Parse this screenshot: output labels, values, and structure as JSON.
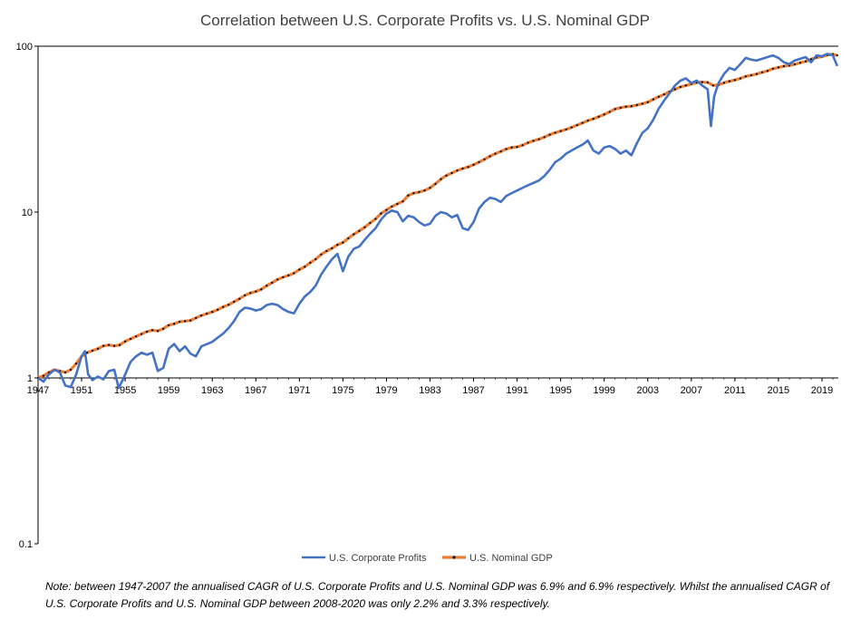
{
  "chart_data": {
    "type": "line",
    "title": "Correlation between U.S. Corporate Profits vs. U.S. Nominal GDP",
    "xlabel": "",
    "ylabel": "",
    "y_scale": "log",
    "ylim": [
      0.1,
      100
    ],
    "y_ticks": [
      {
        "value": 0.1,
        "label": "0.1"
      },
      {
        "value": 1,
        "label": "1"
      },
      {
        "value": 10,
        "label": "10"
      },
      {
        "value": 100,
        "label": "100"
      }
    ],
    "xlim": [
      1947,
      2020.5
    ],
    "x_ticks": [
      1947,
      1951,
      1955,
      1959,
      1963,
      1967,
      1971,
      1975,
      1979,
      1983,
      1987,
      1991,
      1995,
      1999,
      2003,
      2007,
      2011,
      2015,
      2019
    ],
    "grid": false,
    "legend_position": "bottom",
    "series": [
      {
        "name": "U.S. Corporate Profits",
        "color": "#4472C4",
        "marker": "none",
        "points": [
          [
            1947,
            1.0
          ],
          [
            1947.5,
            0.95
          ],
          [
            1948,
            1.05
          ],
          [
            1948.5,
            1.12
          ],
          [
            1949,
            1.08
          ],
          [
            1949.5,
            0.9
          ],
          [
            1950,
            0.88
          ],
          [
            1950.5,
            1.05
          ],
          [
            1951,
            1.35
          ],
          [
            1951.3,
            1.45
          ],
          [
            1951.6,
            1.05
          ],
          [
            1952,
            0.97
          ],
          [
            1952.5,
            1.02
          ],
          [
            1953,
            0.98
          ],
          [
            1953.5,
            1.1
          ],
          [
            1954,
            1.12
          ],
          [
            1954.4,
            0.87
          ],
          [
            1954.8,
            0.98
          ],
          [
            1955,
            1.05
          ],
          [
            1955.5,
            1.25
          ],
          [
            1956,
            1.35
          ],
          [
            1956.5,
            1.42
          ],
          [
            1957,
            1.38
          ],
          [
            1957.5,
            1.42
          ],
          [
            1958,
            1.1
          ],
          [
            1958.5,
            1.15
          ],
          [
            1959,
            1.5
          ],
          [
            1959.5,
            1.6
          ],
          [
            1960,
            1.45
          ],
          [
            1960.5,
            1.55
          ],
          [
            1961,
            1.4
          ],
          [
            1961.5,
            1.35
          ],
          [
            1962,
            1.55
          ],
          [
            1962.5,
            1.6
          ],
          [
            1963,
            1.65
          ],
          [
            1963.5,
            1.75
          ],
          [
            1964,
            1.85
          ],
          [
            1964.5,
            2.0
          ],
          [
            1965,
            2.2
          ],
          [
            1965.5,
            2.5
          ],
          [
            1966,
            2.65
          ],
          [
            1966.5,
            2.62
          ],
          [
            1967,
            2.55
          ],
          [
            1967.5,
            2.6
          ],
          [
            1968,
            2.75
          ],
          [
            1968.5,
            2.8
          ],
          [
            1969,
            2.75
          ],
          [
            1969.5,
            2.6
          ],
          [
            1970,
            2.5
          ],
          [
            1970.5,
            2.45
          ],
          [
            1971,
            2.8
          ],
          [
            1971.5,
            3.1
          ],
          [
            1972,
            3.3
          ],
          [
            1972.5,
            3.6
          ],
          [
            1973,
            4.2
          ],
          [
            1973.5,
            4.7
          ],
          [
            1974,
            5.2
          ],
          [
            1974.5,
            5.6
          ],
          [
            1975,
            4.4
          ],
          [
            1975.5,
            5.4
          ],
          [
            1976,
            6.0
          ],
          [
            1976.5,
            6.2
          ],
          [
            1977,
            6.8
          ],
          [
            1977.5,
            7.4
          ],
          [
            1978,
            8.0
          ],
          [
            1978.5,
            9.0
          ],
          [
            1979,
            9.8
          ],
          [
            1979.5,
            10.2
          ],
          [
            1980,
            10.0
          ],
          [
            1980.5,
            8.8
          ],
          [
            1981,
            9.5
          ],
          [
            1981.5,
            9.3
          ],
          [
            1982,
            8.7
          ],
          [
            1982.5,
            8.3
          ],
          [
            1983,
            8.5
          ],
          [
            1983.5,
            9.5
          ],
          [
            1984,
            10.0
          ],
          [
            1984.5,
            9.8
          ],
          [
            1985,
            9.3
          ],
          [
            1985.5,
            9.6
          ],
          [
            1986,
            8.0
          ],
          [
            1986.5,
            7.8
          ],
          [
            1987,
            8.7
          ],
          [
            1987.5,
            10.5
          ],
          [
            1988,
            11.5
          ],
          [
            1988.5,
            12.2
          ],
          [
            1989,
            12.0
          ],
          [
            1989.5,
            11.5
          ],
          [
            1990,
            12.5
          ],
          [
            1990.5,
            13.0
          ],
          [
            1991,
            13.5
          ],
          [
            1991.5,
            14.0
          ],
          [
            1992,
            14.5
          ],
          [
            1992.5,
            15.0
          ],
          [
            1993,
            15.5
          ],
          [
            1993.5,
            16.5
          ],
          [
            1994,
            18.0
          ],
          [
            1994.5,
            20.0
          ],
          [
            1995,
            21.0
          ],
          [
            1995.5,
            22.5
          ],
          [
            1996,
            23.5
          ],
          [
            1996.5,
            24.5
          ],
          [
            1997,
            25.5
          ],
          [
            1997.5,
            27.0
          ],
          [
            1998,
            23.5
          ],
          [
            1998.5,
            22.5
          ],
          [
            1999,
            24.5
          ],
          [
            1999.5,
            25.0
          ],
          [
            2000,
            24.0
          ],
          [
            2000.5,
            22.5
          ],
          [
            2001,
            23.5
          ],
          [
            2001.5,
            22.0
          ],
          [
            2002,
            26.0
          ],
          [
            2002.5,
            30.0
          ],
          [
            2003,
            32.0
          ],
          [
            2003.5,
            36.0
          ],
          [
            2004,
            42.0
          ],
          [
            2004.5,
            47.0
          ],
          [
            2005,
            52.0
          ],
          [
            2005.5,
            58.0
          ],
          [
            2006,
            62.0
          ],
          [
            2006.5,
            64.0
          ],
          [
            2007,
            60.0
          ],
          [
            2007.5,
            62.0
          ],
          [
            2008,
            58.0
          ],
          [
            2008.5,
            55.0
          ],
          [
            2008.8,
            33.0
          ],
          [
            2009.1,
            50.0
          ],
          [
            2009.5,
            60.0
          ],
          [
            2010,
            68.0
          ],
          [
            2010.5,
            74.0
          ],
          [
            2011,
            72.0
          ],
          [
            2011.5,
            78.0
          ],
          [
            2012,
            85.0
          ],
          [
            2012.5,
            83.0
          ],
          [
            2013,
            82.0
          ],
          [
            2013.5,
            84.0
          ],
          [
            2014,
            86.0
          ],
          [
            2014.5,
            88.0
          ],
          [
            2015,
            85.0
          ],
          [
            2015.5,
            80.0
          ],
          [
            2016,
            78.0
          ],
          [
            2016.5,
            82.0
          ],
          [
            2017,
            84.0
          ],
          [
            2017.5,
            86.0
          ],
          [
            2018,
            80.0
          ],
          [
            2018.5,
            88.0
          ],
          [
            2019,
            87.0
          ],
          [
            2019.5,
            90.0
          ],
          [
            2020,
            88.0
          ],
          [
            2020.4,
            76.0
          ]
        ]
      },
      {
        "name": "U.S. Nominal GDP",
        "color": "#ED7D31",
        "marker": "dot",
        "marker_color": "#000000",
        "points": [
          [
            1947,
            1.0
          ],
          [
            1947.5,
            1.03
          ],
          [
            1948,
            1.08
          ],
          [
            1948.5,
            1.12
          ],
          [
            1949,
            1.1
          ],
          [
            1949.5,
            1.08
          ],
          [
            1950,
            1.12
          ],
          [
            1950.5,
            1.22
          ],
          [
            1951,
            1.35
          ],
          [
            1951.5,
            1.42
          ],
          [
            1952,
            1.46
          ],
          [
            1952.5,
            1.5
          ],
          [
            1953,
            1.56
          ],
          [
            1953.5,
            1.58
          ],
          [
            1954,
            1.56
          ],
          [
            1954.5,
            1.58
          ],
          [
            1955,
            1.66
          ],
          [
            1955.5,
            1.72
          ],
          [
            1956,
            1.78
          ],
          [
            1956.5,
            1.84
          ],
          [
            1957,
            1.9
          ],
          [
            1957.5,
            1.94
          ],
          [
            1958,
            1.92
          ],
          [
            1958.5,
            1.98
          ],
          [
            1959,
            2.08
          ],
          [
            1959.5,
            2.12
          ],
          [
            1960,
            2.18
          ],
          [
            1960.5,
            2.2
          ],
          [
            1961,
            2.22
          ],
          [
            1961.5,
            2.3
          ],
          [
            1962,
            2.38
          ],
          [
            1962.5,
            2.44
          ],
          [
            1963,
            2.5
          ],
          [
            1963.5,
            2.58
          ],
          [
            1964,
            2.68
          ],
          [
            1964.5,
            2.76
          ],
          [
            1965,
            2.88
          ],
          [
            1965.5,
            3.0
          ],
          [
            1966,
            3.15
          ],
          [
            1966.5,
            3.25
          ],
          [
            1967,
            3.32
          ],
          [
            1967.5,
            3.42
          ],
          [
            1968,
            3.6
          ],
          [
            1968.5,
            3.75
          ],
          [
            1969,
            3.92
          ],
          [
            1969.5,
            4.05
          ],
          [
            1970,
            4.15
          ],
          [
            1970.5,
            4.28
          ],
          [
            1971,
            4.5
          ],
          [
            1971.5,
            4.68
          ],
          [
            1972,
            4.95
          ],
          [
            1972.5,
            5.2
          ],
          [
            1973,
            5.55
          ],
          [
            1973.5,
            5.82
          ],
          [
            1974,
            6.05
          ],
          [
            1974.5,
            6.35
          ],
          [
            1975,
            6.55
          ],
          [
            1975.5,
            6.95
          ],
          [
            1976,
            7.35
          ],
          [
            1976.5,
            7.7
          ],
          [
            1977,
            8.1
          ],
          [
            1977.5,
            8.6
          ],
          [
            1978,
            9.1
          ],
          [
            1978.5,
            9.8
          ],
          [
            1979,
            10.3
          ],
          [
            1979.5,
            10.8
          ],
          [
            1980,
            11.2
          ],
          [
            1980.5,
            11.6
          ],
          [
            1981,
            12.6
          ],
          [
            1981.5,
            13.0
          ],
          [
            1982,
            13.2
          ],
          [
            1982.5,
            13.5
          ],
          [
            1983,
            14.0
          ],
          [
            1983.5,
            14.8
          ],
          [
            1984,
            15.8
          ],
          [
            1984.5,
            16.6
          ],
          [
            1985,
            17.2
          ],
          [
            1985.5,
            17.8
          ],
          [
            1986,
            18.3
          ],
          [
            1986.5,
            18.7
          ],
          [
            1987,
            19.3
          ],
          [
            1987.5,
            20.0
          ],
          [
            1988,
            20.8
          ],
          [
            1988.5,
            21.7
          ],
          [
            1989,
            22.5
          ],
          [
            1989.5,
            23.2
          ],
          [
            1990,
            24.0
          ],
          [
            1990.5,
            24.5
          ],
          [
            1991,
            24.7
          ],
          [
            1991.5,
            25.3
          ],
          [
            1992,
            26.2
          ],
          [
            1992.5,
            26.9
          ],
          [
            1993,
            27.5
          ],
          [
            1993.5,
            28.3
          ],
          [
            1994,
            29.3
          ],
          [
            1994.5,
            30.1
          ],
          [
            1995,
            30.8
          ],
          [
            1995.5,
            31.5
          ],
          [
            1996,
            32.4
          ],
          [
            1996.5,
            33.4
          ],
          [
            1997,
            34.5
          ],
          [
            1997.5,
            35.6
          ],
          [
            1998,
            36.5
          ],
          [
            1998.5,
            37.6
          ],
          [
            1999,
            38.8
          ],
          [
            1999.5,
            40.2
          ],
          [
            2000,
            41.8
          ],
          [
            2000.5,
            42.6
          ],
          [
            2001,
            43.2
          ],
          [
            2001.5,
            43.5
          ],
          [
            2002,
            44.2
          ],
          [
            2002.5,
            45.0
          ],
          [
            2003,
            46.0
          ],
          [
            2003.5,
            47.8
          ],
          [
            2004,
            49.6
          ],
          [
            2004.5,
            51.2
          ],
          [
            2005,
            53.2
          ],
          [
            2005.5,
            55.0
          ],
          [
            2006,
            56.8
          ],
          [
            2006.5,
            58.0
          ],
          [
            2007,
            59.2
          ],
          [
            2007.5,
            60.4
          ],
          [
            2008,
            60.8
          ],
          [
            2008.5,
            60.5
          ],
          [
            2009,
            58.0
          ],
          [
            2009.5,
            58.5
          ],
          [
            2010,
            60.2
          ],
          [
            2010.5,
            61.5
          ],
          [
            2011,
            62.5
          ],
          [
            2011.5,
            64.0
          ],
          [
            2012,
            65.8
          ],
          [
            2012.5,
            66.8
          ],
          [
            2013,
            68.0
          ],
          [
            2013.5,
            69.6
          ],
          [
            2014,
            71.0
          ],
          [
            2014.5,
            73.2
          ],
          [
            2015,
            74.5
          ],
          [
            2015.5,
            75.8
          ],
          [
            2016,
            76.5
          ],
          [
            2016.5,
            77.8
          ],
          [
            2017,
            79.5
          ],
          [
            2017.5,
            81.0
          ],
          [
            2018,
            83.5
          ],
          [
            2018.5,
            85.5
          ],
          [
            2019,
            86.5
          ],
          [
            2019.5,
            88.5
          ],
          [
            2020,
            89.5
          ],
          [
            2020.4,
            88.0
          ]
        ]
      }
    ]
  },
  "note": "Note: between 1947-2007 the annualised CAGR of U.S. Corporate Profits and U.S. Nominal GDP was 6.9% and 6.9% respectively. Whilst the annualised CAGR of U.S. Corporate Profits and U.S. Nominal GDP between 2008-2020 was only 2.2% and 3.3% respectively."
}
